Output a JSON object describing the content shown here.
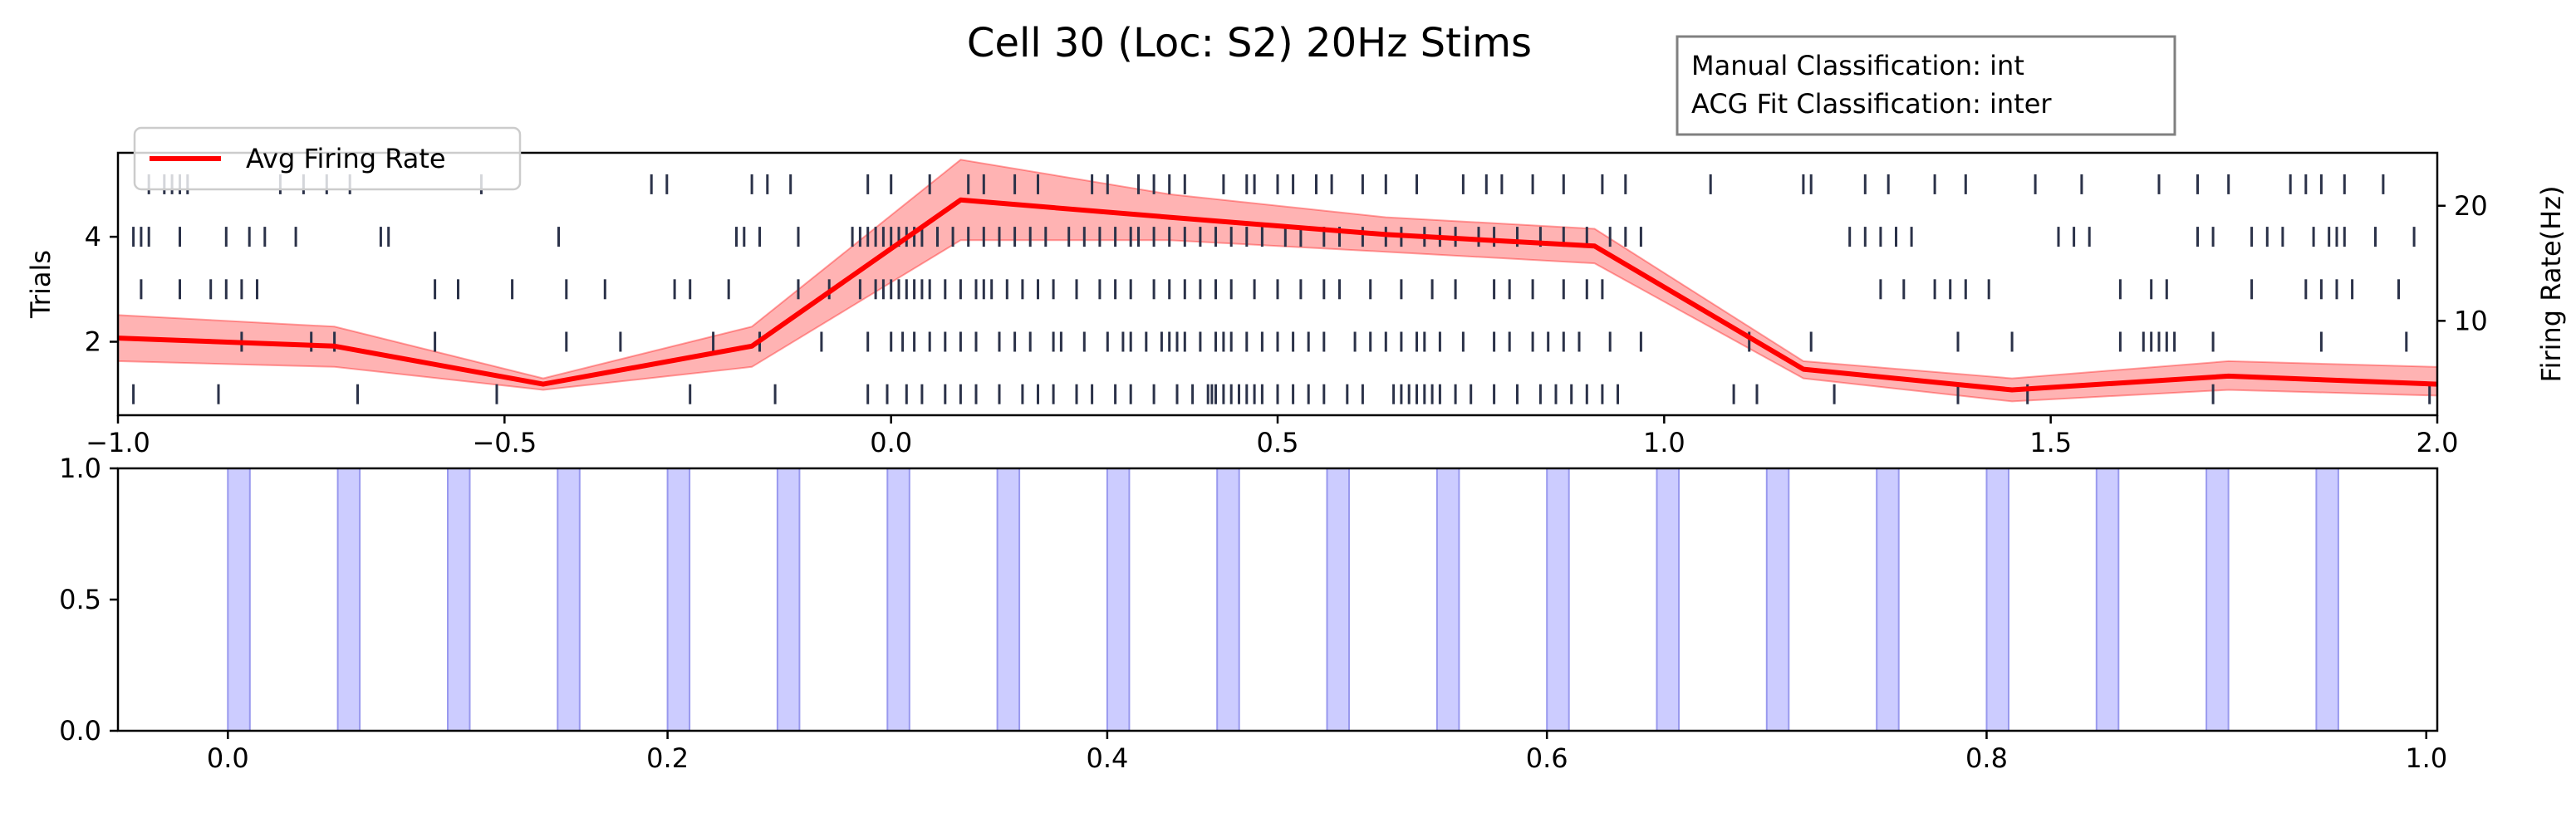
{
  "title": "Cell 30 (Loc: S2) 20Hz Stims",
  "classification": {
    "manual": "Manual Classification: int",
    "acg": "ACG Fit Classification: inter"
  },
  "colors": {
    "spike": "#2b3249",
    "rate_line": "#ff0000",
    "rate_band": "#ff8080",
    "stim_fill": "#ccccff",
    "stim_edge": "#9999ee"
  },
  "chart_data": [
    {
      "type": "line",
      "panel": "raster-and-rate",
      "ylabel": "Trials",
      "y2label": "Firing Rate(Hz)",
      "xlim": [
        -1.0,
        2.0
      ],
      "ylim": [
        0.6,
        5.6
      ],
      "y2lim": [
        1.8,
        24.6
      ],
      "xticks": [
        "−1.0",
        "−0.5",
        "0.0",
        "0.5",
        "1.0",
        "1.5",
        "2.0"
      ],
      "xtick_values": [
        -1.0,
        -0.5,
        0.0,
        0.5,
        1.0,
        1.5,
        2.0
      ],
      "yticks": [
        "2",
        "4"
      ],
      "ytick_values": [
        2,
        4
      ],
      "y2ticks": [
        "10",
        "20"
      ],
      "y2tick_values": [
        10,
        20
      ],
      "legend": {
        "label": "Avg Firing Rate",
        "position": "upper-left"
      },
      "series": [
        {
          "name": "Avg Firing Rate",
          "x": [
            -1.0,
            -0.72,
            -0.45,
            -0.18,
            0.09,
            0.36,
            0.64,
            0.91,
            1.18,
            1.45,
            1.73,
            2.0
          ],
          "y": [
            8.5,
            7.8,
            4.5,
            7.8,
            20.5,
            19.0,
            17.5,
            16.5,
            5.8,
            4.0,
            5.2,
            4.5
          ],
          "lower": [
            6.5,
            6.0,
            4.0,
            6.0,
            17.0,
            17.0,
            16.0,
            15.0,
            5.0,
            3.0,
            4.0,
            3.5
          ],
          "upper": [
            10.5,
            9.5,
            5.0,
            9.5,
            24.0,
            21.0,
            19.0,
            18.0,
            6.5,
            5.0,
            6.5,
            6.0
          ]
        }
      ],
      "raster": [
        {
          "trial": 1,
          "spikes": [
            -0.98,
            -0.87,
            -0.69,
            -0.51,
            -0.26,
            -0.15,
            -0.03,
            -0.005,
            0.02,
            0.04,
            0.07,
            0.09,
            0.11,
            0.14,
            0.17,
            0.19,
            0.21,
            0.24,
            0.26,
            0.29,
            0.31,
            0.34,
            0.37,
            0.39,
            0.41,
            0.415,
            0.42,
            0.43,
            0.44,
            0.45,
            0.46,
            0.47,
            0.48,
            0.5,
            0.52,
            0.54,
            0.56,
            0.59,
            0.61,
            0.65,
            0.66,
            0.67,
            0.68,
            0.69,
            0.7,
            0.71,
            0.73,
            0.75,
            0.78,
            0.81,
            0.84,
            0.86,
            0.88,
            0.9,
            0.92,
            0.94,
            1.09,
            1.12,
            1.22,
            1.38,
            1.47,
            1.71,
            1.99
          ]
        },
        {
          "trial": 2,
          "spikes": [
            -0.84,
            -0.75,
            -0.72,
            -0.59,
            -0.42,
            -0.35,
            -0.23,
            -0.17,
            -0.09,
            -0.03,
            0.0,
            0.015,
            0.03,
            0.05,
            0.07,
            0.09,
            0.11,
            0.14,
            0.16,
            0.18,
            0.21,
            0.22,
            0.25,
            0.28,
            0.3,
            0.31,
            0.33,
            0.35,
            0.36,
            0.37,
            0.38,
            0.4,
            0.42,
            0.43,
            0.44,
            0.46,
            0.48,
            0.5,
            0.52,
            0.54,
            0.56,
            0.6,
            0.62,
            0.64,
            0.66,
            0.68,
            0.69,
            0.71,
            0.74,
            0.78,
            0.8,
            0.83,
            0.85,
            0.87,
            0.89,
            0.93,
            0.97,
            1.11,
            1.19,
            1.38,
            1.45,
            1.59,
            1.62,
            1.63,
            1.64,
            1.65,
            1.66,
            1.71,
            1.85,
            1.96
          ]
        },
        {
          "trial": 3,
          "spikes": [
            -0.97,
            -0.92,
            -0.88,
            -0.86,
            -0.84,
            -0.82,
            -0.59,
            -0.56,
            -0.49,
            -0.42,
            -0.37,
            -0.28,
            -0.26,
            -0.21,
            -0.12,
            -0.08,
            -0.04,
            -0.02,
            -0.01,
            0.0,
            0.01,
            0.02,
            0.03,
            0.04,
            0.05,
            0.07,
            0.09,
            0.11,
            0.12,
            0.13,
            0.15,
            0.17,
            0.19,
            0.21,
            0.24,
            0.27,
            0.29,
            0.31,
            0.34,
            0.36,
            0.38,
            0.4,
            0.42,
            0.44,
            0.47,
            0.5,
            0.53,
            0.56,
            0.58,
            0.62,
            0.66,
            0.7,
            0.73,
            0.78,
            0.8,
            0.83,
            0.87,
            0.9,
            0.92,
            1.28,
            1.31,
            1.35,
            1.37,
            1.39,
            1.42,
            1.59,
            1.63,
            1.65,
            1.76,
            1.83,
            1.85,
            1.87,
            1.89,
            1.95
          ]
        },
        {
          "trial": 4,
          "spikes": [
            -0.98,
            -0.97,
            -0.96,
            -0.92,
            -0.86,
            -0.83,
            -0.81,
            -0.77,
            -0.66,
            -0.65,
            -0.43,
            -0.2,
            -0.19,
            -0.17,
            -0.12,
            -0.05,
            -0.04,
            -0.03,
            -0.02,
            -0.01,
            0.0,
            0.01,
            0.02,
            0.03,
            0.04,
            0.06,
            0.08,
            0.1,
            0.12,
            0.14,
            0.16,
            0.18,
            0.2,
            0.23,
            0.25,
            0.27,
            0.29,
            0.31,
            0.32,
            0.34,
            0.36,
            0.38,
            0.4,
            0.42,
            0.44,
            0.46,
            0.48,
            0.51,
            0.53,
            0.56,
            0.58,
            0.61,
            0.64,
            0.66,
            0.69,
            0.71,
            0.73,
            0.76,
            0.78,
            0.81,
            0.84,
            0.87,
            0.9,
            0.93,
            0.95,
            0.97,
            1.24,
            1.26,
            1.28,
            1.3,
            1.32,
            1.51,
            1.53,
            1.55,
            1.69,
            1.71,
            1.76,
            1.78,
            1.8,
            1.84,
            1.86,
            1.87,
            1.88,
            1.92,
            1.97
          ]
        },
        {
          "trial": 5,
          "spikes": [
            -0.96,
            -0.94,
            -0.93,
            -0.92,
            -0.91,
            -0.79,
            -0.76,
            -0.73,
            -0.7,
            -0.53,
            -0.31,
            -0.29,
            -0.18,
            -0.16,
            -0.13,
            -0.03,
            0.0,
            0.05,
            0.1,
            0.12,
            0.16,
            0.19,
            0.26,
            0.28,
            0.32,
            0.34,
            0.36,
            0.38,
            0.43,
            0.46,
            0.47,
            0.5,
            0.52,
            0.55,
            0.57,
            0.61,
            0.64,
            0.68,
            0.74,
            0.77,
            0.79,
            0.83,
            0.87,
            0.92,
            0.95,
            1.06,
            1.18,
            1.19,
            1.26,
            1.29,
            1.35,
            1.39,
            1.48,
            1.54,
            1.64,
            1.69,
            1.73,
            1.81,
            1.83,
            1.85,
            1.88,
            1.93
          ]
        }
      ]
    },
    {
      "type": "bar",
      "panel": "stimulus-timing",
      "xlim": [
        -0.05,
        1.005
      ],
      "ylim": [
        0.0,
        1.0
      ],
      "xticks": [
        "0.0",
        "0.2",
        "0.4",
        "0.6",
        "0.8",
        "1.0"
      ],
      "xtick_values": [
        0.0,
        0.2,
        0.4,
        0.6,
        0.8,
        1.0
      ],
      "yticks": [
        "0.0",
        "0.5",
        "1.0"
      ],
      "ytick_values": [
        0.0,
        0.5,
        1.0
      ],
      "pulse_width": 0.01,
      "pulse_starts": [
        0.0,
        0.05,
        0.1,
        0.15,
        0.2,
        0.25,
        0.3,
        0.35,
        0.4,
        0.45,
        0.5,
        0.55,
        0.6,
        0.65,
        0.7,
        0.75,
        0.8,
        0.85,
        0.9,
        0.95
      ]
    }
  ]
}
